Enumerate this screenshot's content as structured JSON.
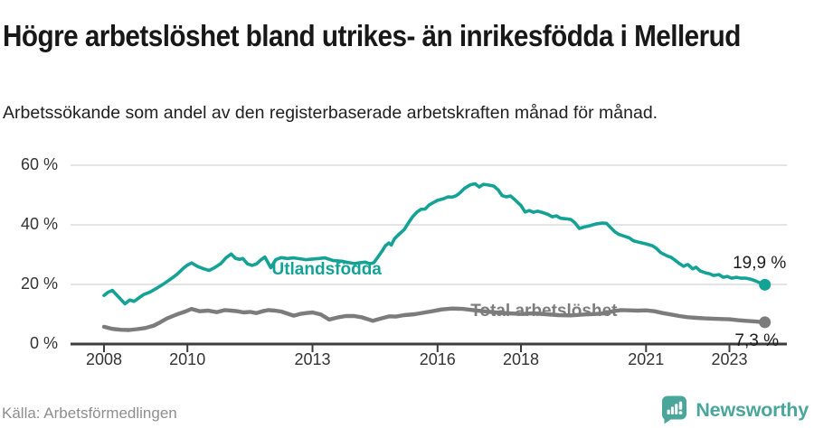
{
  "chart_data": {
    "type": "line",
    "title": "Högre arbetslöshet bland utrikes- än inrikesfödda i Mellerud",
    "subtitle": "Arbetssökande som andel av den registerbaserade arbetskraften månad för månad.",
    "xlabel": "",
    "ylabel": "",
    "ylim": [
      0,
      62
    ],
    "x_range": [
      2008,
      2023.85
    ],
    "grid": "horizontal-only",
    "legend_position": "inline-on-lines",
    "y_ticks": [
      {
        "value": 0,
        "label": "0 %"
      },
      {
        "value": 20,
        "label": "20 %"
      },
      {
        "value": 40,
        "label": "40 %"
      },
      {
        "value": 60,
        "label": "60 %"
      }
    ],
    "x_ticks": [
      {
        "year": 2008,
        "label": "2008"
      },
      {
        "year": 2010,
        "label": "2010"
      },
      {
        "year": 2013,
        "label": "2013"
      },
      {
        "year": 2016,
        "label": "2016"
      },
      {
        "year": 2018,
        "label": "2018"
      },
      {
        "year": 2021,
        "label": "2021"
      },
      {
        "year": 2023,
        "label": "2023"
      }
    ],
    "series": [
      {
        "name": "Utlandsfödda",
        "color": "#15a296",
        "end_label": "19,9 %",
        "end_value": 19.9,
        "label_at": {
          "x": 2013.34,
          "y": 24.8
        },
        "points": [
          [
            2008.0,
            16.3
          ],
          [
            2008.1,
            17.4
          ],
          [
            2008.2,
            18.0
          ],
          [
            2008.35,
            15.8
          ],
          [
            2008.5,
            13.5
          ],
          [
            2008.62,
            14.8
          ],
          [
            2008.72,
            14.3
          ],
          [
            2008.82,
            15.3
          ],
          [
            2008.95,
            16.6
          ],
          [
            2009.1,
            17.4
          ],
          [
            2009.25,
            18.6
          ],
          [
            2009.42,
            20.1
          ],
          [
            2009.58,
            21.6
          ],
          [
            2009.75,
            23.4
          ],
          [
            2009.9,
            25.4
          ],
          [
            2010.0,
            26.5
          ],
          [
            2010.1,
            27.2
          ],
          [
            2010.25,
            26.0
          ],
          [
            2010.4,
            25.2
          ],
          [
            2010.52,
            24.7
          ],
          [
            2010.65,
            25.6
          ],
          [
            2010.8,
            27.0
          ],
          [
            2010.93,
            29.0
          ],
          [
            2011.05,
            30.2
          ],
          [
            2011.16,
            28.7
          ],
          [
            2011.25,
            28.4
          ],
          [
            2011.33,
            28.7
          ],
          [
            2011.44,
            26.9
          ],
          [
            2011.55,
            26.4
          ],
          [
            2011.66,
            26.9
          ],
          [
            2011.76,
            28.2
          ],
          [
            2011.86,
            29.2
          ],
          [
            2012.0,
            25.6
          ],
          [
            2012.12,
            28.3
          ],
          [
            2012.25,
            29.0
          ],
          [
            2012.4,
            28.7
          ],
          [
            2012.55,
            28.9
          ],
          [
            2012.7,
            28.6
          ],
          [
            2012.85,
            28.3
          ],
          [
            2013.0,
            28.5
          ],
          [
            2013.15,
            28.7
          ],
          [
            2013.3,
            28.9
          ],
          [
            2013.5,
            28.0
          ],
          [
            2013.7,
            27.8
          ],
          [
            2013.85,
            27.4
          ],
          [
            2014.0,
            27.0
          ],
          [
            2014.15,
            27.3
          ],
          [
            2014.27,
            27.5
          ],
          [
            2014.37,
            26.9
          ],
          [
            2014.47,
            27.3
          ],
          [
            2014.57,
            29.2
          ],
          [
            2014.67,
            31.2
          ],
          [
            2014.75,
            33.0
          ],
          [
            2014.83,
            33.9
          ],
          [
            2014.89,
            33.2
          ],
          [
            2014.97,
            35.4
          ],
          [
            2015.08,
            36.9
          ],
          [
            2015.2,
            38.4
          ],
          [
            2015.3,
            40.6
          ],
          [
            2015.4,
            42.7
          ],
          [
            2015.5,
            44.2
          ],
          [
            2015.6,
            45.2
          ],
          [
            2015.7,
            45.3
          ],
          [
            2015.8,
            46.7
          ],
          [
            2015.9,
            47.5
          ],
          [
            2016.0,
            48.2
          ],
          [
            2016.15,
            48.8
          ],
          [
            2016.25,
            49.4
          ],
          [
            2016.35,
            49.3
          ],
          [
            2016.45,
            49.8
          ],
          [
            2016.55,
            50.9
          ],
          [
            2016.65,
            52.3
          ],
          [
            2016.78,
            53.4
          ],
          [
            2016.9,
            53.8
          ],
          [
            2017.0,
            52.7
          ],
          [
            2017.1,
            53.6
          ],
          [
            2017.25,
            53.3
          ],
          [
            2017.35,
            53.0
          ],
          [
            2017.45,
            51.8
          ],
          [
            2017.55,
            49.8
          ],
          [
            2017.65,
            49.4
          ],
          [
            2017.75,
            49.7
          ],
          [
            2017.87,
            48.2
          ],
          [
            2018.0,
            46.5
          ],
          [
            2018.1,
            44.3
          ],
          [
            2018.2,
            44.8
          ],
          [
            2018.3,
            44.2
          ],
          [
            2018.4,
            44.6
          ],
          [
            2018.5,
            44.2
          ],
          [
            2018.65,
            43.5
          ],
          [
            2018.75,
            42.7
          ],
          [
            2018.85,
            43.0
          ],
          [
            2018.95,
            42.2
          ],
          [
            2019.1,
            42.0
          ],
          [
            2019.2,
            41.8
          ],
          [
            2019.3,
            40.6
          ],
          [
            2019.4,
            38.8
          ],
          [
            2019.5,
            39.2
          ],
          [
            2019.65,
            39.7
          ],
          [
            2019.8,
            40.3
          ],
          [
            2019.95,
            40.6
          ],
          [
            2020.05,
            40.5
          ],
          [
            2020.15,
            39.1
          ],
          [
            2020.25,
            37.7
          ],
          [
            2020.35,
            36.8
          ],
          [
            2020.5,
            36.1
          ],
          [
            2020.6,
            35.6
          ],
          [
            2020.7,
            34.6
          ],
          [
            2020.85,
            34.1
          ],
          [
            2021.0,
            33.6
          ],
          [
            2021.15,
            33.0
          ],
          [
            2021.25,
            32.1
          ],
          [
            2021.35,
            30.7
          ],
          [
            2021.5,
            29.6
          ],
          [
            2021.6,
            29.1
          ],
          [
            2021.7,
            28.1
          ],
          [
            2021.8,
            27.0
          ],
          [
            2021.9,
            26.1
          ],
          [
            2022.0,
            26.7
          ],
          [
            2022.12,
            25.2
          ],
          [
            2022.2,
            25.8
          ],
          [
            2022.3,
            24.5
          ],
          [
            2022.42,
            23.9
          ],
          [
            2022.52,
            23.6
          ],
          [
            2022.62,
            23.0
          ],
          [
            2022.75,
            23.3
          ],
          [
            2022.85,
            22.4
          ],
          [
            2022.95,
            22.7
          ],
          [
            2023.05,
            22.1
          ],
          [
            2023.17,
            22.4
          ],
          [
            2023.28,
            22.1
          ],
          [
            2023.4,
            22.1
          ],
          [
            2023.5,
            21.8
          ],
          [
            2023.62,
            21.2
          ],
          [
            2023.72,
            20.6
          ],
          [
            2023.85,
            19.9
          ]
        ]
      },
      {
        "name": "Total arbetslöshet",
        "color": "#7c7c7c",
        "end_label": "7,3 %",
        "end_value": 7.3,
        "label_at": {
          "x": 2018.55,
          "y": 11.0
        },
        "points": [
          [
            2008.0,
            5.8
          ],
          [
            2008.2,
            5.1
          ],
          [
            2008.4,
            4.8
          ],
          [
            2008.6,
            4.7
          ],
          [
            2008.8,
            5.0
          ],
          [
            2009.0,
            5.4
          ],
          [
            2009.2,
            6.2
          ],
          [
            2009.35,
            7.3
          ],
          [
            2009.5,
            8.5
          ],
          [
            2009.65,
            9.4
          ],
          [
            2009.8,
            10.2
          ],
          [
            2009.95,
            10.9
          ],
          [
            2010.1,
            11.8
          ],
          [
            2010.3,
            11.0
          ],
          [
            2010.5,
            11.2
          ],
          [
            2010.7,
            10.7
          ],
          [
            2010.9,
            11.4
          ],
          [
            2011.05,
            11.2
          ],
          [
            2011.2,
            11.0
          ],
          [
            2011.35,
            10.6
          ],
          [
            2011.5,
            10.8
          ],
          [
            2011.65,
            10.4
          ],
          [
            2011.8,
            11.0
          ],
          [
            2011.95,
            11.4
          ],
          [
            2012.1,
            11.2
          ],
          [
            2012.25,
            10.9
          ],
          [
            2012.55,
            9.5
          ],
          [
            2012.7,
            10.1
          ],
          [
            2012.85,
            10.4
          ],
          [
            2013.0,
            10.6
          ],
          [
            2013.2,
            9.9
          ],
          [
            2013.4,
            8.2
          ],
          [
            2013.6,
            8.9
          ],
          [
            2013.8,
            9.4
          ],
          [
            2014.0,
            9.4
          ],
          [
            2014.2,
            8.9
          ],
          [
            2014.45,
            7.8
          ],
          [
            2014.65,
            8.6
          ],
          [
            2014.85,
            9.3
          ],
          [
            2015.0,
            9.2
          ],
          [
            2015.2,
            9.7
          ],
          [
            2015.45,
            10.0
          ],
          [
            2015.7,
            10.6
          ],
          [
            2015.9,
            11.1
          ],
          [
            2016.1,
            11.6
          ],
          [
            2016.35,
            11.9
          ],
          [
            2016.6,
            11.8
          ],
          [
            2016.85,
            11.4
          ],
          [
            2017.1,
            11.0
          ],
          [
            2017.4,
            10.6
          ],
          [
            2017.7,
            10.3
          ],
          [
            2018.0,
            10.1
          ],
          [
            2018.3,
            10.3
          ],
          [
            2018.6,
            10.0
          ],
          [
            2018.9,
            9.7
          ],
          [
            2019.2,
            9.6
          ],
          [
            2019.5,
            9.9
          ],
          [
            2019.8,
            10.1
          ],
          [
            2020.0,
            10.3
          ],
          [
            2020.2,
            11.0
          ],
          [
            2020.4,
            11.4
          ],
          [
            2020.6,
            11.3
          ],
          [
            2020.8,
            11.2
          ],
          [
            2021.0,
            11.3
          ],
          [
            2021.2,
            11.0
          ],
          [
            2021.4,
            10.4
          ],
          [
            2021.6,
            9.9
          ],
          [
            2021.8,
            9.4
          ],
          [
            2022.0,
            9.0
          ],
          [
            2022.2,
            8.8
          ],
          [
            2022.4,
            8.6
          ],
          [
            2022.6,
            8.5
          ],
          [
            2022.8,
            8.4
          ],
          [
            2023.0,
            8.3
          ],
          [
            2023.2,
            8.0
          ],
          [
            2023.4,
            7.8
          ],
          [
            2023.6,
            7.6
          ],
          [
            2023.85,
            7.3
          ]
        ]
      }
    ]
  },
  "colors": {
    "grid": "#dcdcdc",
    "axis": "#3d3d3d",
    "tick_text": "#333333",
    "accent_teal": "#15a296",
    "logo_teal": "#4aa59b"
  },
  "footer": {
    "source": "Källa: Arbetsförmedlingen",
    "logo_text": "Newsworthy",
    "logo_icon": "bar-chart-speech-bubble-icon"
  }
}
